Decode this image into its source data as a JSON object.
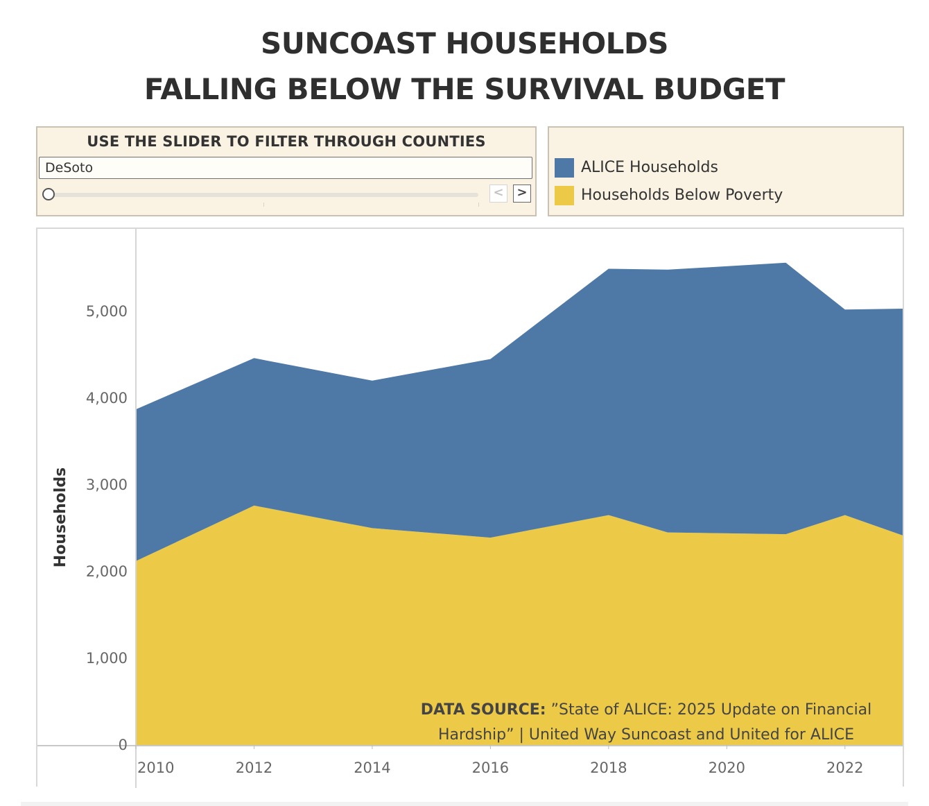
{
  "title": {
    "line1": "SUNCOAST HOUSEHOLDS",
    "line2": "FALLING BELOW THE SURVIVAL BUDGET"
  },
  "filter": {
    "caption": "USE THE SLIDER TO FILTER THROUGH COUNTIES",
    "selected_county": "DeSoto",
    "prev_icon": "chevron-left-icon",
    "next_icon": "chevron-right-icon",
    "prev_glyph": "<",
    "next_glyph": ">",
    "slider_fraction": 0
  },
  "legend": {
    "items": [
      {
        "label": "ALICE Households",
        "color": "#4e79a7"
      },
      {
        "label": "Households Below Poverty",
        "color": "#edc948"
      }
    ]
  },
  "chart_data": {
    "type": "area",
    "stacked": true,
    "title": "SUNCOAST HOUSEHOLDS FALLING BELOW THE SURVIVAL BUDGET",
    "xlabel": "",
    "ylabel": "Households",
    "x": [
      2010,
      2012,
      2014,
      2016,
      2018,
      2019,
      2021,
      2022,
      2023
    ],
    "xlim": [
      2010,
      2023
    ],
    "ylim": [
      0,
      5950
    ],
    "x_ticks": [
      2010,
      2012,
      2014,
      2016,
      2018,
      2020,
      2022
    ],
    "x_tick_labels": [
      "2010",
      "2012",
      "2014",
      "2016",
      "2018",
      "2020",
      "2022"
    ],
    "y_ticks": [
      0,
      1000,
      2000,
      3000,
      4000,
      5000
    ],
    "y_tick_labels": [
      "0",
      "1,000",
      "2,000",
      "3,000",
      "4,000",
      "5,000"
    ],
    "series": [
      {
        "name": "Households Below Poverty",
        "color": "#edc948",
        "values": [
          2120,
          2760,
          2500,
          2390,
          2650,
          2450,
          2430,
          2650,
          2410
        ]
      },
      {
        "name": "ALICE Households",
        "color": "#4e79a7",
        "values": [
          1750,
          1700,
          1700,
          2060,
          2840,
          3030,
          3130,
          2370,
          2620
        ]
      }
    ],
    "annotation": {
      "bold": "DATA SOURCE:",
      "line1": " ”State of ALICE: 2025 Update on Financial",
      "line2": "Hardship” | United Way Suncoast and United for ALICE"
    }
  }
}
